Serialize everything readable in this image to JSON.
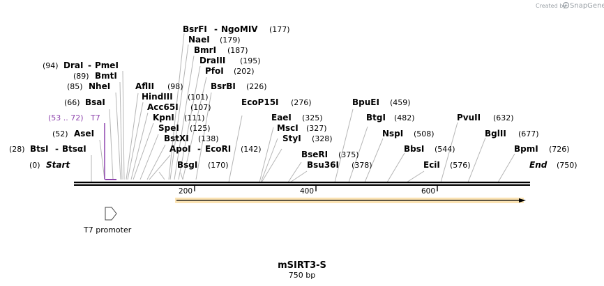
{
  "header": {
    "created_by": "Created by",
    "brand": "SnapGene"
  },
  "map": {
    "name": "mSIRT3-S",
    "length_label": "750 bp",
    "start_label": "Start",
    "start_pos": "(0)",
    "end_label": "End",
    "end_pos": "(750)",
    "ruler": [
      "200",
      "400",
      "600"
    ]
  },
  "sites": [
    {
      "name": "BtsI",
      "name2": "BtsαI",
      "pos": "(28)"
    },
    {
      "name": "AseI",
      "pos": "(52)"
    },
    {
      "name": "BsaI",
      "pos": "(66)"
    },
    {
      "name": "NheI",
      "pos": "(85)"
    },
    {
      "name": "BmtI",
      "pos": "(89)"
    },
    {
      "name": "DraI",
      "name2": "PmeI",
      "pos": "(94)"
    },
    {
      "name": "AflII",
      "pos": "(98)"
    },
    {
      "name": "HindIII",
      "pos": "(101)"
    },
    {
      "name": "Acc65I",
      "pos": "(107)"
    },
    {
      "name": "KpnI",
      "pos": "(111)"
    },
    {
      "name": "SpeI",
      "pos": "(125)"
    },
    {
      "name": "BstXI",
      "pos": "(138)"
    },
    {
      "name": "ApoI",
      "name2": "EcoRI",
      "pos": "(142)"
    },
    {
      "name": "BsgI",
      "pos": "(170)"
    },
    {
      "name": "BsrFI",
      "name2": "NgoMIV",
      "pos": "(177)"
    },
    {
      "name": "NaeI",
      "pos": "(179)"
    },
    {
      "name": "BmrI",
      "pos": "(187)"
    },
    {
      "name": "DraIII",
      "pos": "(195)"
    },
    {
      "name": "PfoI",
      "pos": "(202)"
    },
    {
      "name": "BsrBI",
      "pos": "(226)"
    },
    {
      "name": "EcoP15I",
      "pos": "(276)"
    },
    {
      "name": "EaeI",
      "pos": "(325)"
    },
    {
      "name": "MscI",
      "pos": "(327)"
    },
    {
      "name": "StyI",
      "pos": "(328)"
    },
    {
      "name": "BseRI",
      "pos": "(375)"
    },
    {
      "name": "Bsu36I",
      "pos": "(378)"
    },
    {
      "name": "BpuEI",
      "pos": "(459)"
    },
    {
      "name": "BtgI",
      "pos": "(482)"
    },
    {
      "name": "NspI",
      "pos": "(508)"
    },
    {
      "name": "BbsI",
      "pos": "(544)"
    },
    {
      "name": "EciI",
      "pos": "(576)"
    },
    {
      "name": "PvuII",
      "pos": "(632)"
    },
    {
      "name": "BglII",
      "pos": "(677)"
    },
    {
      "name": "BpmI",
      "pos": "(726)"
    }
  ],
  "features": {
    "t7_range": "(53 .. 72)",
    "t7_label": "T7",
    "promoter_label": "T7 promoter"
  },
  "colors": {
    "purple": "#8e44ad",
    "orf": "#f4a41c"
  }
}
